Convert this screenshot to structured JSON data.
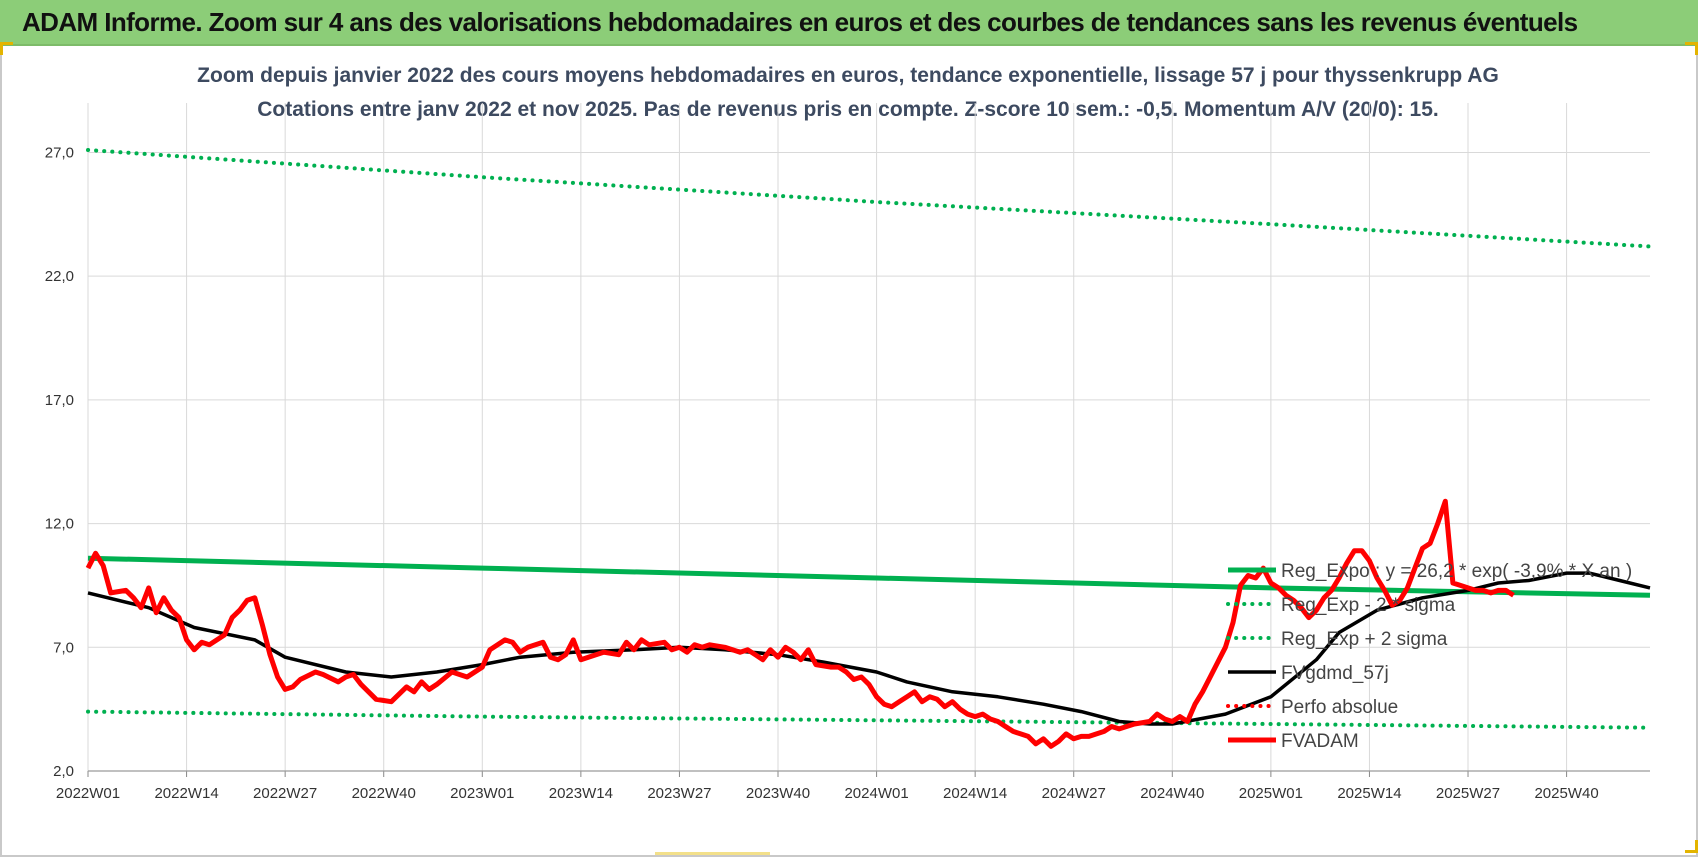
{
  "banner": {
    "title": "ADAM Informe. Zoom sur 4 ans des valorisations hebdomadaires en euros et des courbes de tendances sans les revenus éventuels",
    "background": "#8ccd78"
  },
  "chart_data": {
    "type": "line",
    "title": "Zoom depuis janvier 2022 des cours moyens hebdomadaires en euros, tendance exponentielle, lissage 57 j pour thyssenkrupp AG",
    "subtitle": "Cotations entre janv 2022 et nov 2025. Pas de revenus pris en compte. Z-score 10 sem.: -0,5. Momentum A/V (20/0): 15.",
    "xlabel": "",
    "ylabel": "",
    "ylim": [
      2.0,
      29.0
    ],
    "yticks": [
      2.0,
      7.0,
      12.0,
      17.0,
      22.0,
      27.0
    ],
    "ytick_labels": [
      "2,0",
      "7,0",
      "12,0",
      "17,0",
      "22,0",
      "27,0"
    ],
    "x_tick_labels": [
      "2022W01",
      "2022W14",
      "2022W27",
      "2022W40",
      "2023W01",
      "2023W14",
      "2023W27",
      "2023W40",
      "2024W01",
      "2024W14",
      "2024W27",
      "2024W40",
      "2025W01",
      "2025W14",
      "2025W27",
      "2025W40"
    ],
    "x_tick_weeks": [
      0,
      13,
      26,
      39,
      52,
      65,
      78,
      91,
      104,
      117,
      130,
      143,
      156,
      169,
      182,
      195
    ],
    "x_range_weeks": [
      0,
      206
    ],
    "grid": true,
    "legend_position": "right, overlapping plot",
    "series": [
      {
        "name": "Reg_Expo : y = 26,2 * exp( -3,9% * X an )",
        "color": "#00b050",
        "style": "solid",
        "points": [
          [
            0,
            10.6
          ],
          [
            52,
            10.2
          ],
          [
            104,
            9.8
          ],
          [
            156,
            9.4
          ],
          [
            206,
            9.1
          ]
        ]
      },
      {
        "name": "Reg_Exp - 2 * sigma",
        "color": "#00b050",
        "style": "dotted",
        "points": [
          [
            0,
            4.4
          ],
          [
            52,
            4.2
          ],
          [
            104,
            4.05
          ],
          [
            156,
            3.9
          ],
          [
            206,
            3.75
          ]
        ]
      },
      {
        "name": "Reg_Exp + 2 sigma",
        "color": "#00b050",
        "style": "dotted",
        "points": [
          [
            0,
            27.1
          ],
          [
            52,
            26.0
          ],
          [
            104,
            25.0
          ],
          [
            156,
            24.1
          ],
          [
            206,
            23.2
          ]
        ]
      },
      {
        "name": "FVgdmd_57j",
        "color": "#000000",
        "style": "solid",
        "points": [
          [
            0,
            9.2
          ],
          [
            8,
            8.6
          ],
          [
            14,
            7.8
          ],
          [
            22,
            7.3
          ],
          [
            26,
            6.6
          ],
          [
            34,
            6.0
          ],
          [
            40,
            5.8
          ],
          [
            46,
            6.0
          ],
          [
            52,
            6.3
          ],
          [
            57,
            6.6
          ],
          [
            64,
            6.8
          ],
          [
            72,
            6.9
          ],
          [
            78,
            7.0
          ],
          [
            84,
            6.9
          ],
          [
            91,
            6.7
          ],
          [
            97,
            6.4
          ],
          [
            104,
            6.0
          ],
          [
            108,
            5.6
          ],
          [
            114,
            5.2
          ],
          [
            120,
            5.0
          ],
          [
            126,
            4.7
          ],
          [
            131,
            4.4
          ],
          [
            136,
            4.0
          ],
          [
            140,
            3.9
          ],
          [
            143,
            3.9
          ],
          [
            150,
            4.3
          ],
          [
            156,
            5.0
          ],
          [
            162,
            6.5
          ],
          [
            165,
            7.6
          ],
          [
            170,
            8.5
          ],
          [
            176,
            9.0
          ],
          [
            182,
            9.3
          ],
          [
            186,
            9.6
          ],
          [
            190,
            9.7
          ],
          [
            195,
            10.0
          ],
          [
            198,
            10.0
          ],
          [
            202,
            9.7
          ],
          [
            206,
            9.4
          ]
        ]
      },
      {
        "name": "Perfo absolue",
        "color": "#ff0000",
        "style": "dotted",
        "points": []
      },
      {
        "name": "FVADAM",
        "color": "#ff0000",
        "style": "solid",
        "points": [
          [
            0,
            10.2
          ],
          [
            1,
            10.8
          ],
          [
            2,
            10.3
          ],
          [
            3,
            9.2
          ],
          [
            5,
            9.3
          ],
          [
            6,
            9.0
          ],
          [
            7,
            8.6
          ],
          [
            8,
            9.4
          ],
          [
            9,
            8.4
          ],
          [
            10,
            9.0
          ],
          [
            11,
            8.5
          ],
          [
            12,
            8.2
          ],
          [
            13,
            7.3
          ],
          [
            14,
            6.9
          ],
          [
            15,
            7.2
          ],
          [
            16,
            7.1
          ],
          [
            18,
            7.5
          ],
          [
            19,
            8.2
          ],
          [
            20,
            8.5
          ],
          [
            21,
            8.9
          ],
          [
            22,
            9.0
          ],
          [
            23,
            7.9
          ],
          [
            24,
            6.7
          ],
          [
            25,
            5.8
          ],
          [
            26,
            5.3
          ],
          [
            27,
            5.4
          ],
          [
            28,
            5.7
          ],
          [
            30,
            6.0
          ],
          [
            31,
            5.9
          ],
          [
            33,
            5.6
          ],
          [
            34,
            5.8
          ],
          [
            35,
            5.9
          ],
          [
            36,
            5.5
          ],
          [
            38,
            4.9
          ],
          [
            40,
            4.8
          ],
          [
            41,
            5.1
          ],
          [
            42,
            5.4
          ],
          [
            43,
            5.2
          ],
          [
            44,
            5.6
          ],
          [
            45,
            5.3
          ],
          [
            46,
            5.5
          ],
          [
            48,
            6.0
          ],
          [
            50,
            5.8
          ],
          [
            52,
            6.2
          ],
          [
            53,
            6.9
          ],
          [
            55,
            7.3
          ],
          [
            56,
            7.2
          ],
          [
            57,
            6.8
          ],
          [
            58,
            7.0
          ],
          [
            60,
            7.2
          ],
          [
            61,
            6.6
          ],
          [
            62,
            6.5
          ],
          [
            63,
            6.7
          ],
          [
            64,
            7.3
          ],
          [
            65,
            6.5
          ],
          [
            66,
            6.6
          ],
          [
            68,
            6.8
          ],
          [
            70,
            6.7
          ],
          [
            71,
            7.2
          ],
          [
            72,
            6.9
          ],
          [
            73,
            7.3
          ],
          [
            74,
            7.1
          ],
          [
            76,
            7.2
          ],
          [
            77,
            6.9
          ],
          [
            78,
            7.0
          ],
          [
            79,
            6.8
          ],
          [
            80,
            7.1
          ],
          [
            81,
            7.0
          ],
          [
            82,
            7.1
          ],
          [
            84,
            7.0
          ],
          [
            86,
            6.8
          ],
          [
            87,
            6.9
          ],
          [
            88,
            6.7
          ],
          [
            89,
            6.5
          ],
          [
            90,
            6.9
          ],
          [
            91,
            6.6
          ],
          [
            92,
            7.0
          ],
          [
            93,
            6.8
          ],
          [
            94,
            6.5
          ],
          [
            95,
            6.9
          ],
          [
            96,
            6.3
          ],
          [
            98,
            6.2
          ],
          [
            99,
            6.2
          ],
          [
            100,
            6.0
          ],
          [
            101,
            5.7
          ],
          [
            102,
            5.8
          ],
          [
            103,
            5.5
          ],
          [
            104,
            5.0
          ],
          [
            105,
            4.7
          ],
          [
            106,
            4.6
          ],
          [
            107,
            4.8
          ],
          [
            108,
            5.0
          ],
          [
            109,
            5.2
          ],
          [
            110,
            4.8
          ],
          [
            111,
            5.0
          ],
          [
            112,
            4.9
          ],
          [
            113,
            4.6
          ],
          [
            114,
            4.8
          ],
          [
            115,
            4.5
          ],
          [
            116,
            4.3
          ],
          [
            117,
            4.2
          ],
          [
            118,
            4.3
          ],
          [
            119,
            4.1
          ],
          [
            120,
            4.0
          ],
          [
            121,
            3.8
          ],
          [
            122,
            3.6
          ],
          [
            123,
            3.5
          ],
          [
            124,
            3.4
          ],
          [
            125,
            3.1
          ],
          [
            126,
            3.3
          ],
          [
            127,
            3.0
          ],
          [
            128,
            3.2
          ],
          [
            129,
            3.5
          ],
          [
            130,
            3.3
          ],
          [
            131,
            3.4
          ],
          [
            132,
            3.4
          ],
          [
            134,
            3.6
          ],
          [
            135,
            3.8
          ],
          [
            136,
            3.7
          ],
          [
            138,
            3.9
          ],
          [
            140,
            4.0
          ],
          [
            141,
            4.3
          ],
          [
            142,
            4.1
          ],
          [
            143,
            4.0
          ],
          [
            144,
            4.2
          ],
          [
            145,
            4.0
          ],
          [
            146,
            4.7
          ],
          [
            147,
            5.2
          ],
          [
            148,
            5.8
          ],
          [
            149,
            6.4
          ],
          [
            150,
            7.0
          ],
          [
            151,
            8.0
          ],
          [
            152,
            9.5
          ],
          [
            153,
            9.9
          ],
          [
            154,
            9.8
          ],
          [
            155,
            10.2
          ],
          [
            156,
            9.6
          ],
          [
            157,
            9.4
          ],
          [
            158,
            9.1
          ],
          [
            159,
            8.9
          ],
          [
            160,
            8.6
          ],
          [
            161,
            8.2
          ],
          [
            162,
            8.5
          ],
          [
            163,
            9.0
          ],
          [
            164,
            9.3
          ],
          [
            165,
            9.8
          ],
          [
            166,
            10.4
          ],
          [
            167,
            10.9
          ],
          [
            168,
            10.9
          ],
          [
            169,
            10.5
          ],
          [
            170,
            9.8
          ],
          [
            171,
            9.3
          ],
          [
            172,
            8.7
          ],
          [
            173,
            8.9
          ],
          [
            174,
            9.4
          ],
          [
            175,
            10.2
          ],
          [
            176,
            11.0
          ],
          [
            177,
            11.2
          ],
          [
            178,
            12.0
          ],
          [
            179,
            12.9
          ],
          [
            180,
            9.6
          ],
          [
            181,
            9.5
          ],
          [
            182,
            9.4
          ],
          [
            183,
            9.3
          ],
          [
            184,
            9.3
          ],
          [
            185,
            9.2
          ],
          [
            186,
            9.3
          ],
          [
            187,
            9.3
          ],
          [
            188,
            9.1
          ]
        ]
      }
    ]
  }
}
